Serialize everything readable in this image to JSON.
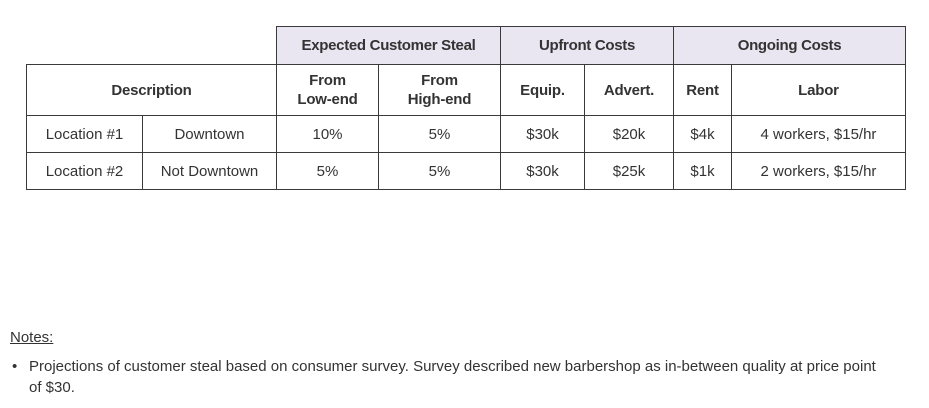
{
  "table": {
    "groups": {
      "steal": "Expected Customer Steal",
      "upfront": "Upfront Costs",
      "ongoing": "Ongoing Costs"
    },
    "headers": {
      "description": "Description",
      "from_low_1": "From",
      "from_low_2": "Low-end",
      "from_high_1": "From",
      "from_high_2": "High-end",
      "equip": "Equip.",
      "advert": "Advert.",
      "rent": "Rent",
      "labor": "Labor"
    },
    "rows": [
      {
        "location": "Location #1",
        "area": "Downtown",
        "from_low": "10%",
        "from_high": "5%",
        "equip": "$30k",
        "advert": "$20k",
        "rent": "$4k",
        "labor": "4 workers, $15/hr"
      },
      {
        "location": "Location #2",
        "area": "Not Downtown",
        "from_low": "5%",
        "from_high": "5%",
        "equip": "$30k",
        "advert": "$25k",
        "rent": "$1k",
        "labor": "2 workers, $15/hr"
      }
    ]
  },
  "notes": {
    "title": "Notes:",
    "items": [
      "Projections of customer steal based on consumer survey. Survey described new barbershop as in-between quality at price point of $30."
    ]
  }
}
